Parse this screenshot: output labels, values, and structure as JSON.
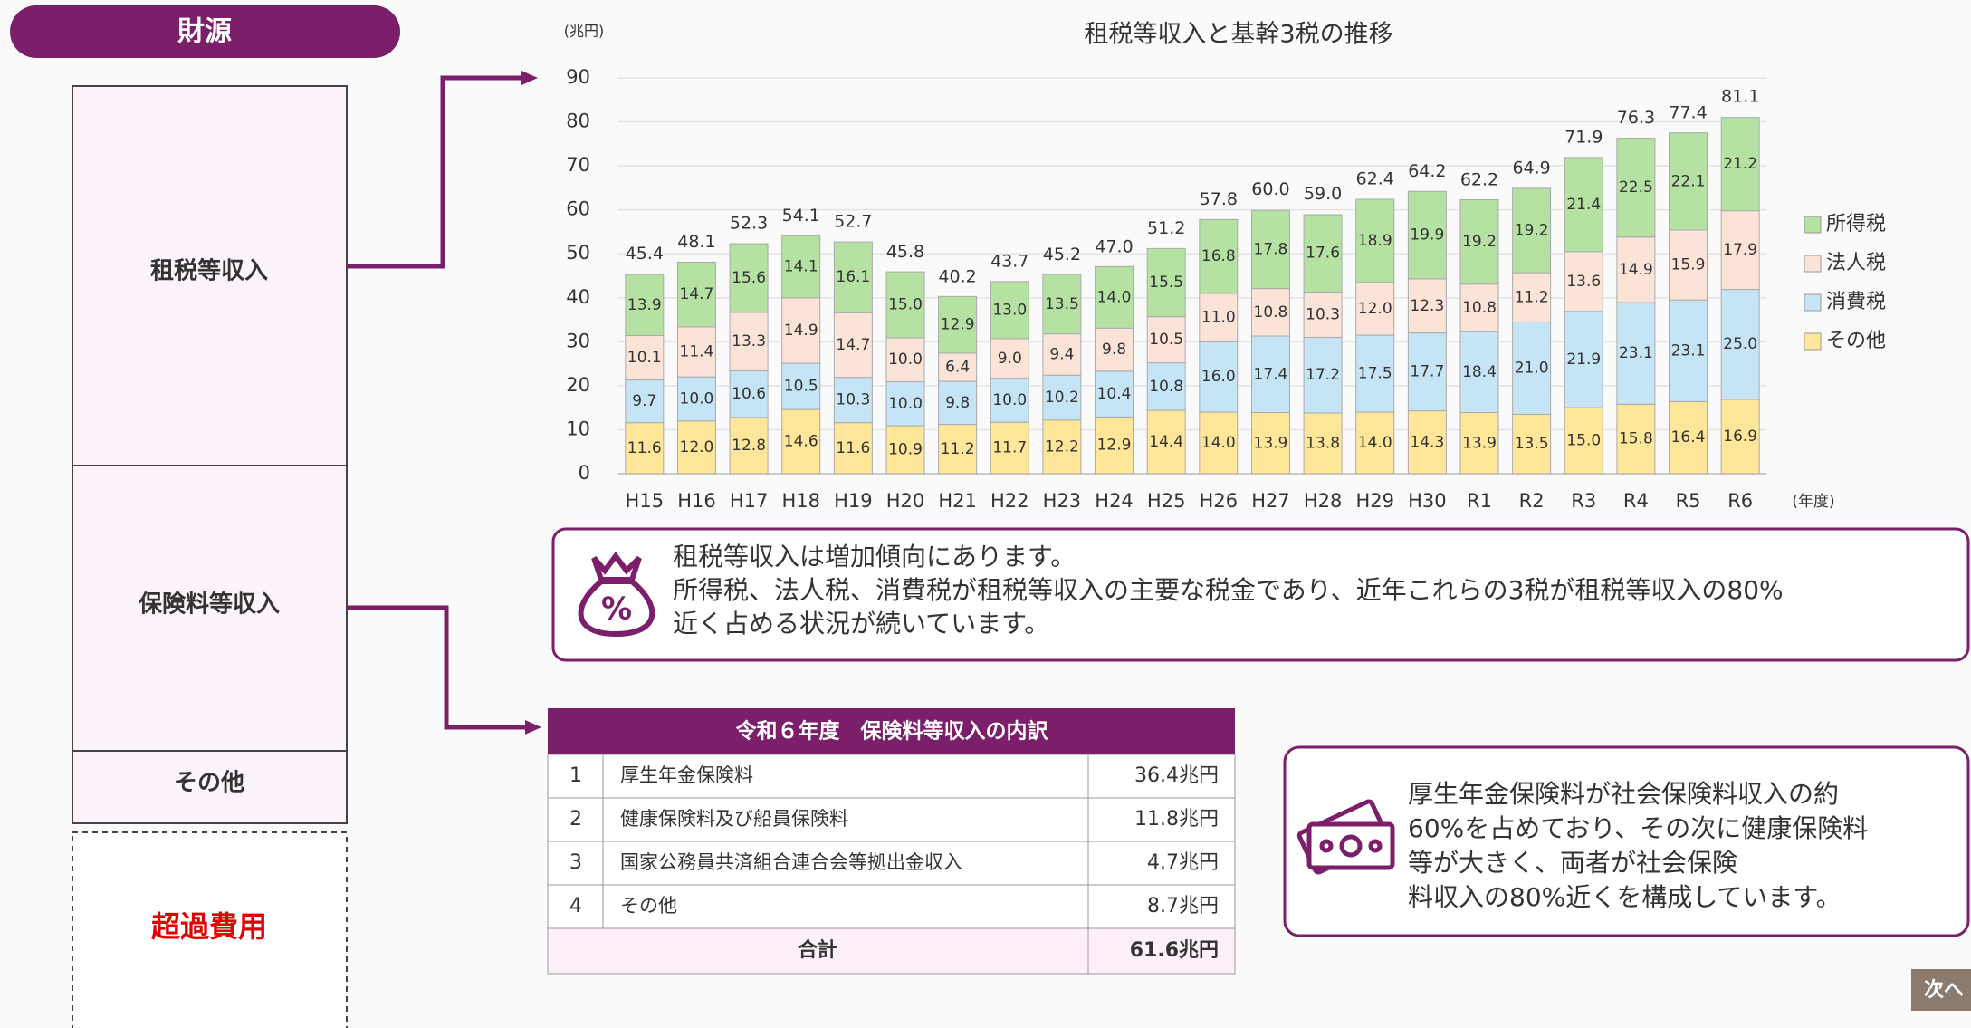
{
  "sidebar": {
    "header": "財源",
    "items": [
      "租税等収入",
      "保険料等収入",
      "その他"
    ],
    "excess": "超過費用"
  },
  "chart_data": {
    "type": "stacked_bar",
    "title": "租税等収入と基幹3税の推移",
    "y_label": "(兆円)",
    "x_label": "(年度)",
    "categories": [
      "H15",
      "H16",
      "H17",
      "H18",
      "H19",
      "H20",
      "H21",
      "H22",
      "H23",
      "H24",
      "H25",
      "H26",
      "H27",
      "H28",
      "H29",
      "H30",
      "R1",
      "R2",
      "R3",
      "R4",
      "R5",
      "R6"
    ],
    "series": [
      {
        "name": "その他",
        "color": "#ffe699",
        "values": [
          11.6,
          12.0,
          12.8,
          14.6,
          11.6,
          10.9,
          11.2,
          11.7,
          12.2,
          12.9,
          14.4,
          14.0,
          13.9,
          13.8,
          14.0,
          14.3,
          13.9,
          13.5,
          15.0,
          15.8,
          16.4,
          16.9
        ],
        "value_labels": [
          "11.6",
          "12.0",
          "12.8",
          "14.6",
          "11.6",
          "10.9",
          "11.2",
          "11.7",
          "12.2",
          "12.9",
          "14.4",
          "14.0",
          "13.9",
          "13.8",
          "14.0",
          "14.3",
          "13.9",
          "13.5",
          "15.0",
          "15.8",
          "16.4",
          "16.9"
        ]
      },
      {
        "name": "消費税",
        "color": "#c5e4f6",
        "values": [
          9.7,
          10.0,
          10.6,
          10.5,
          10.3,
          10.0,
          9.8,
          10.0,
          10.2,
          10.4,
          10.8,
          16.0,
          17.4,
          17.2,
          17.5,
          17.7,
          18.4,
          21.0,
          21.9,
          23.1,
          23.1,
          25.0
        ],
        "value_labels": [
          "9.7",
          "10.0",
          "10.6",
          "10.5",
          "10.3",
          "10.0",
          "9.8",
          "10.0",
          "10.2",
          "10.4",
          "10.8",
          "16.0",
          "17.4",
          "17.2",
          "17.5",
          "17.7",
          "18.4",
          "21.0",
          "21.9",
          "23.1",
          "23.1",
          "25.0"
        ]
      },
      {
        "name": "法人税",
        "color": "#fbe3d8",
        "values": [
          10.1,
          11.4,
          13.3,
          14.9,
          14.7,
          10.0,
          6.4,
          9.0,
          9.4,
          9.8,
          10.5,
          11.0,
          10.8,
          10.3,
          12.0,
          12.3,
          10.8,
          11.2,
          13.6,
          14.9,
          15.9,
          17.9
        ],
        "value_labels": [
          "10.1",
          "11.4",
          "13.3",
          "14.9",
          "14.7",
          "10.0",
          "6.4",
          "9.0",
          "9.4",
          "9.8",
          "10.5",
          "11.0",
          "10.8",
          "10.3",
          "12.0",
          "12.3",
          "10.8",
          "11.2",
          "13.6",
          "14.9",
          "15.9",
          "17.9"
        ]
      },
      {
        "name": "所得税",
        "color": "#b5e1a3",
        "values": [
          13.9,
          14.7,
          15.6,
          14.1,
          16.1,
          15.0,
          12.9,
          13.0,
          13.5,
          14.0,
          15.5,
          16.8,
          17.8,
          17.6,
          18.9,
          19.9,
          19.2,
          19.2,
          21.4,
          22.5,
          22.1,
          21.2
        ],
        "value_labels": [
          "13.9",
          "14.7",
          "15.6",
          "14.1",
          "16.1",
          "15.0",
          "12.9",
          "13.0",
          "13.5",
          "14.0",
          "15.5",
          "16.8",
          "17.8",
          "17.6",
          "18.9",
          "19.9",
          "19.2",
          "19.2",
          "21.4",
          "22.5",
          "22.1",
          "21.2"
        ]
      }
    ],
    "totals": [
      45.4,
      48.1,
      52.3,
      54.1,
      52.7,
      45.8,
      40.2,
      43.7,
      45.2,
      47.0,
      51.2,
      57.8,
      60.0,
      59.0,
      62.4,
      64.2,
      62.2,
      64.9,
      71.9,
      76.3,
      77.4,
      81.1
    ],
    "total_labels": [
      "45.4",
      "48.1",
      "52.3",
      "54.1",
      "52.7",
      "45.8",
      "40.2",
      "43.7",
      "45.2",
      "47.0",
      "51.2",
      "57.8",
      "60.0",
      "59.0",
      "62.4",
      "64.2",
      "62.2",
      "64.9",
      "71.9",
      "76.3",
      "77.4",
      "81.1"
    ],
    "ylim": [
      0,
      90
    ],
    "yticks": [
      0,
      10,
      20,
      30,
      40,
      50,
      60,
      70,
      80,
      90
    ],
    "grid": true,
    "legend": "right"
  },
  "note1": {
    "lines": [
      "租税等収入は増加傾向にあります。",
      "所得税、法人税、消費税が租税等収入の主要な税金であり、近年これらの3税が租税等収入の80%",
      "近く占める状況が続いています。"
    ]
  },
  "table": {
    "title": "令和６年度　保険料等収入の内訳",
    "rows": [
      [
        "1",
        "厚生年金保険料",
        "36.4兆円"
      ],
      [
        "2",
        "健康保険料及び船員保険料",
        "11.8兆円"
      ],
      [
        "3",
        "国家公務員共済組合連合会等拠出金収入",
        "4.7兆円"
      ],
      [
        "4",
        "その他",
        "8.7兆円"
      ]
    ],
    "total": [
      "合計",
      "61.6兆円"
    ]
  },
  "note2": {
    "lines": [
      "厚生年金保険料が社会保険料収入の約",
      "60%を占めており、その次に健康保険料",
      "等が大きく、両者が社会保険",
      "料収入の80%近くを構成しています。"
    ]
  },
  "next_button": "次へ"
}
